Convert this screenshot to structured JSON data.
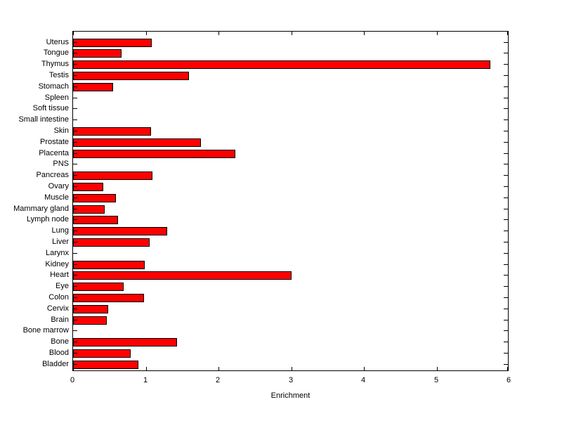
{
  "figure": {
    "background": "#FFFFFF"
  },
  "chart_data": {
    "type": "bar",
    "orientation": "horizontal",
    "title": "",
    "xlabel": "Enrichment",
    "ylabel": "",
    "xlim": [
      0,
      6
    ],
    "x_ticks": [
      "0",
      "1",
      "2",
      "3",
      "4",
      "5",
      "6"
    ],
    "grid": false,
    "bar_color": "#FF0000",
    "bar_edge_color": "#000000",
    "categories": [
      "Uterus",
      "Tongue",
      "Thymus",
      "Testis",
      "Stomach",
      "Spleen",
      "Soft tissue",
      "Small intestine",
      "Skin",
      "Prostate",
      "Placenta",
      "PNS",
      "Pancreas",
      "Ovary",
      "Muscle",
      "Mammary gland",
      "Lymph node",
      "Lung",
      "Liver",
      "Larynx",
      "Kidney",
      "Heart",
      "Eye",
      "Colon",
      "Cervix",
      "Brain",
      "Bone marrow",
      "Bone",
      "Blood",
      "Bladder"
    ],
    "values": [
      1.08,
      0.67,
      5.74,
      1.59,
      0.55,
      0,
      0,
      0,
      1.07,
      1.76,
      2.23,
      0,
      1.09,
      0.42,
      0.59,
      0.43,
      0.62,
      1.29,
      1.05,
      0,
      0.99,
      3.0,
      0.7,
      0.98,
      0.48,
      0.46,
      0,
      1.43,
      0.79,
      0.9
    ]
  }
}
